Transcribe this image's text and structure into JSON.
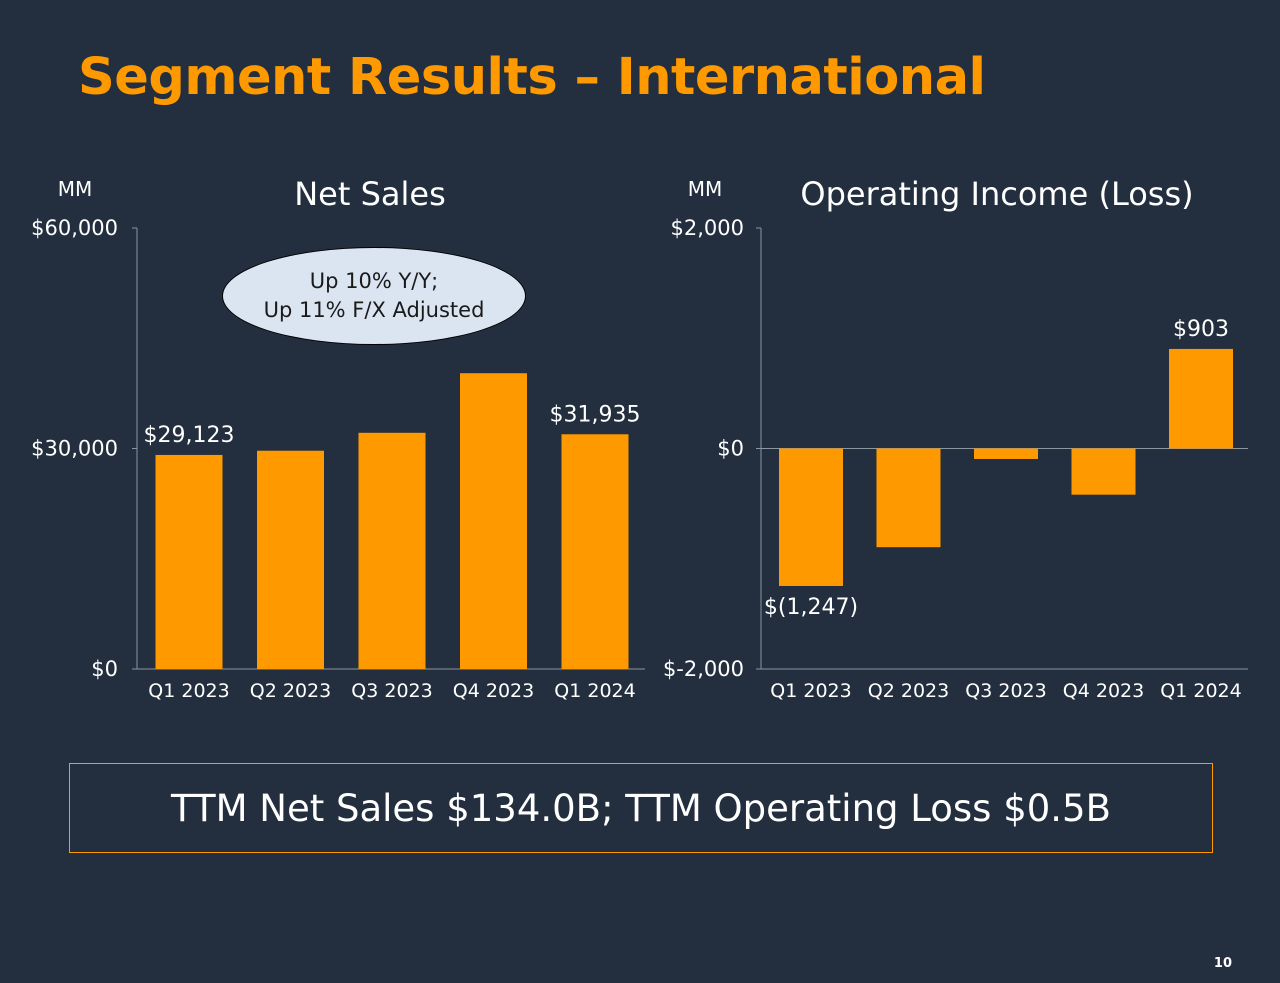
{
  "slide": {
    "title": "Segment Results – International",
    "callout_line1": "Up 10% Y/Y;",
    "callout_line2": "Up 11% F/X Adjusted",
    "ttm_text": "TTM Net Sales $134.0B; TTM Operating Loss $0.5B",
    "page_number": "10",
    "accent_color": "#ff9900",
    "background_color": "#232f3e"
  },
  "chart_data": [
    {
      "type": "bar",
      "title": "Net Sales",
      "unit_label": "MM",
      "categories": [
        "Q1 2023",
        "Q2 2023",
        "Q3 2023",
        "Q4 2023",
        "Q1 2024"
      ],
      "values": [
        29123,
        29697,
        32137,
        40243,
        31935
      ],
      "ylim": [
        0,
        60000
      ],
      "yticks": [
        0,
        30000,
        60000
      ],
      "ytick_labels": [
        "$0",
        "$30,000",
        "$60,000"
      ],
      "data_labels": [
        {
          "index": 0,
          "text": "$29,123"
        },
        {
          "index": 4,
          "text": "$31,935"
        }
      ]
    },
    {
      "type": "bar",
      "title": "Operating Income (Loss)",
      "unit_label": "MM",
      "categories": [
        "Q1 2023",
        "Q2 2023",
        "Q3 2023",
        "Q4 2023",
        "Q1 2024"
      ],
      "values": [
        -1247,
        -895,
        -95,
        -419,
        903
      ],
      "ylim": [
        -2000,
        2000
      ],
      "yticks": [
        -2000,
        0,
        2000
      ],
      "ytick_labels": [
        "$-2,000",
        "$0",
        "$2,000"
      ],
      "data_labels": [
        {
          "index": 0,
          "text": "$(1,247)"
        },
        {
          "index": 4,
          "text": "$903"
        }
      ]
    }
  ]
}
